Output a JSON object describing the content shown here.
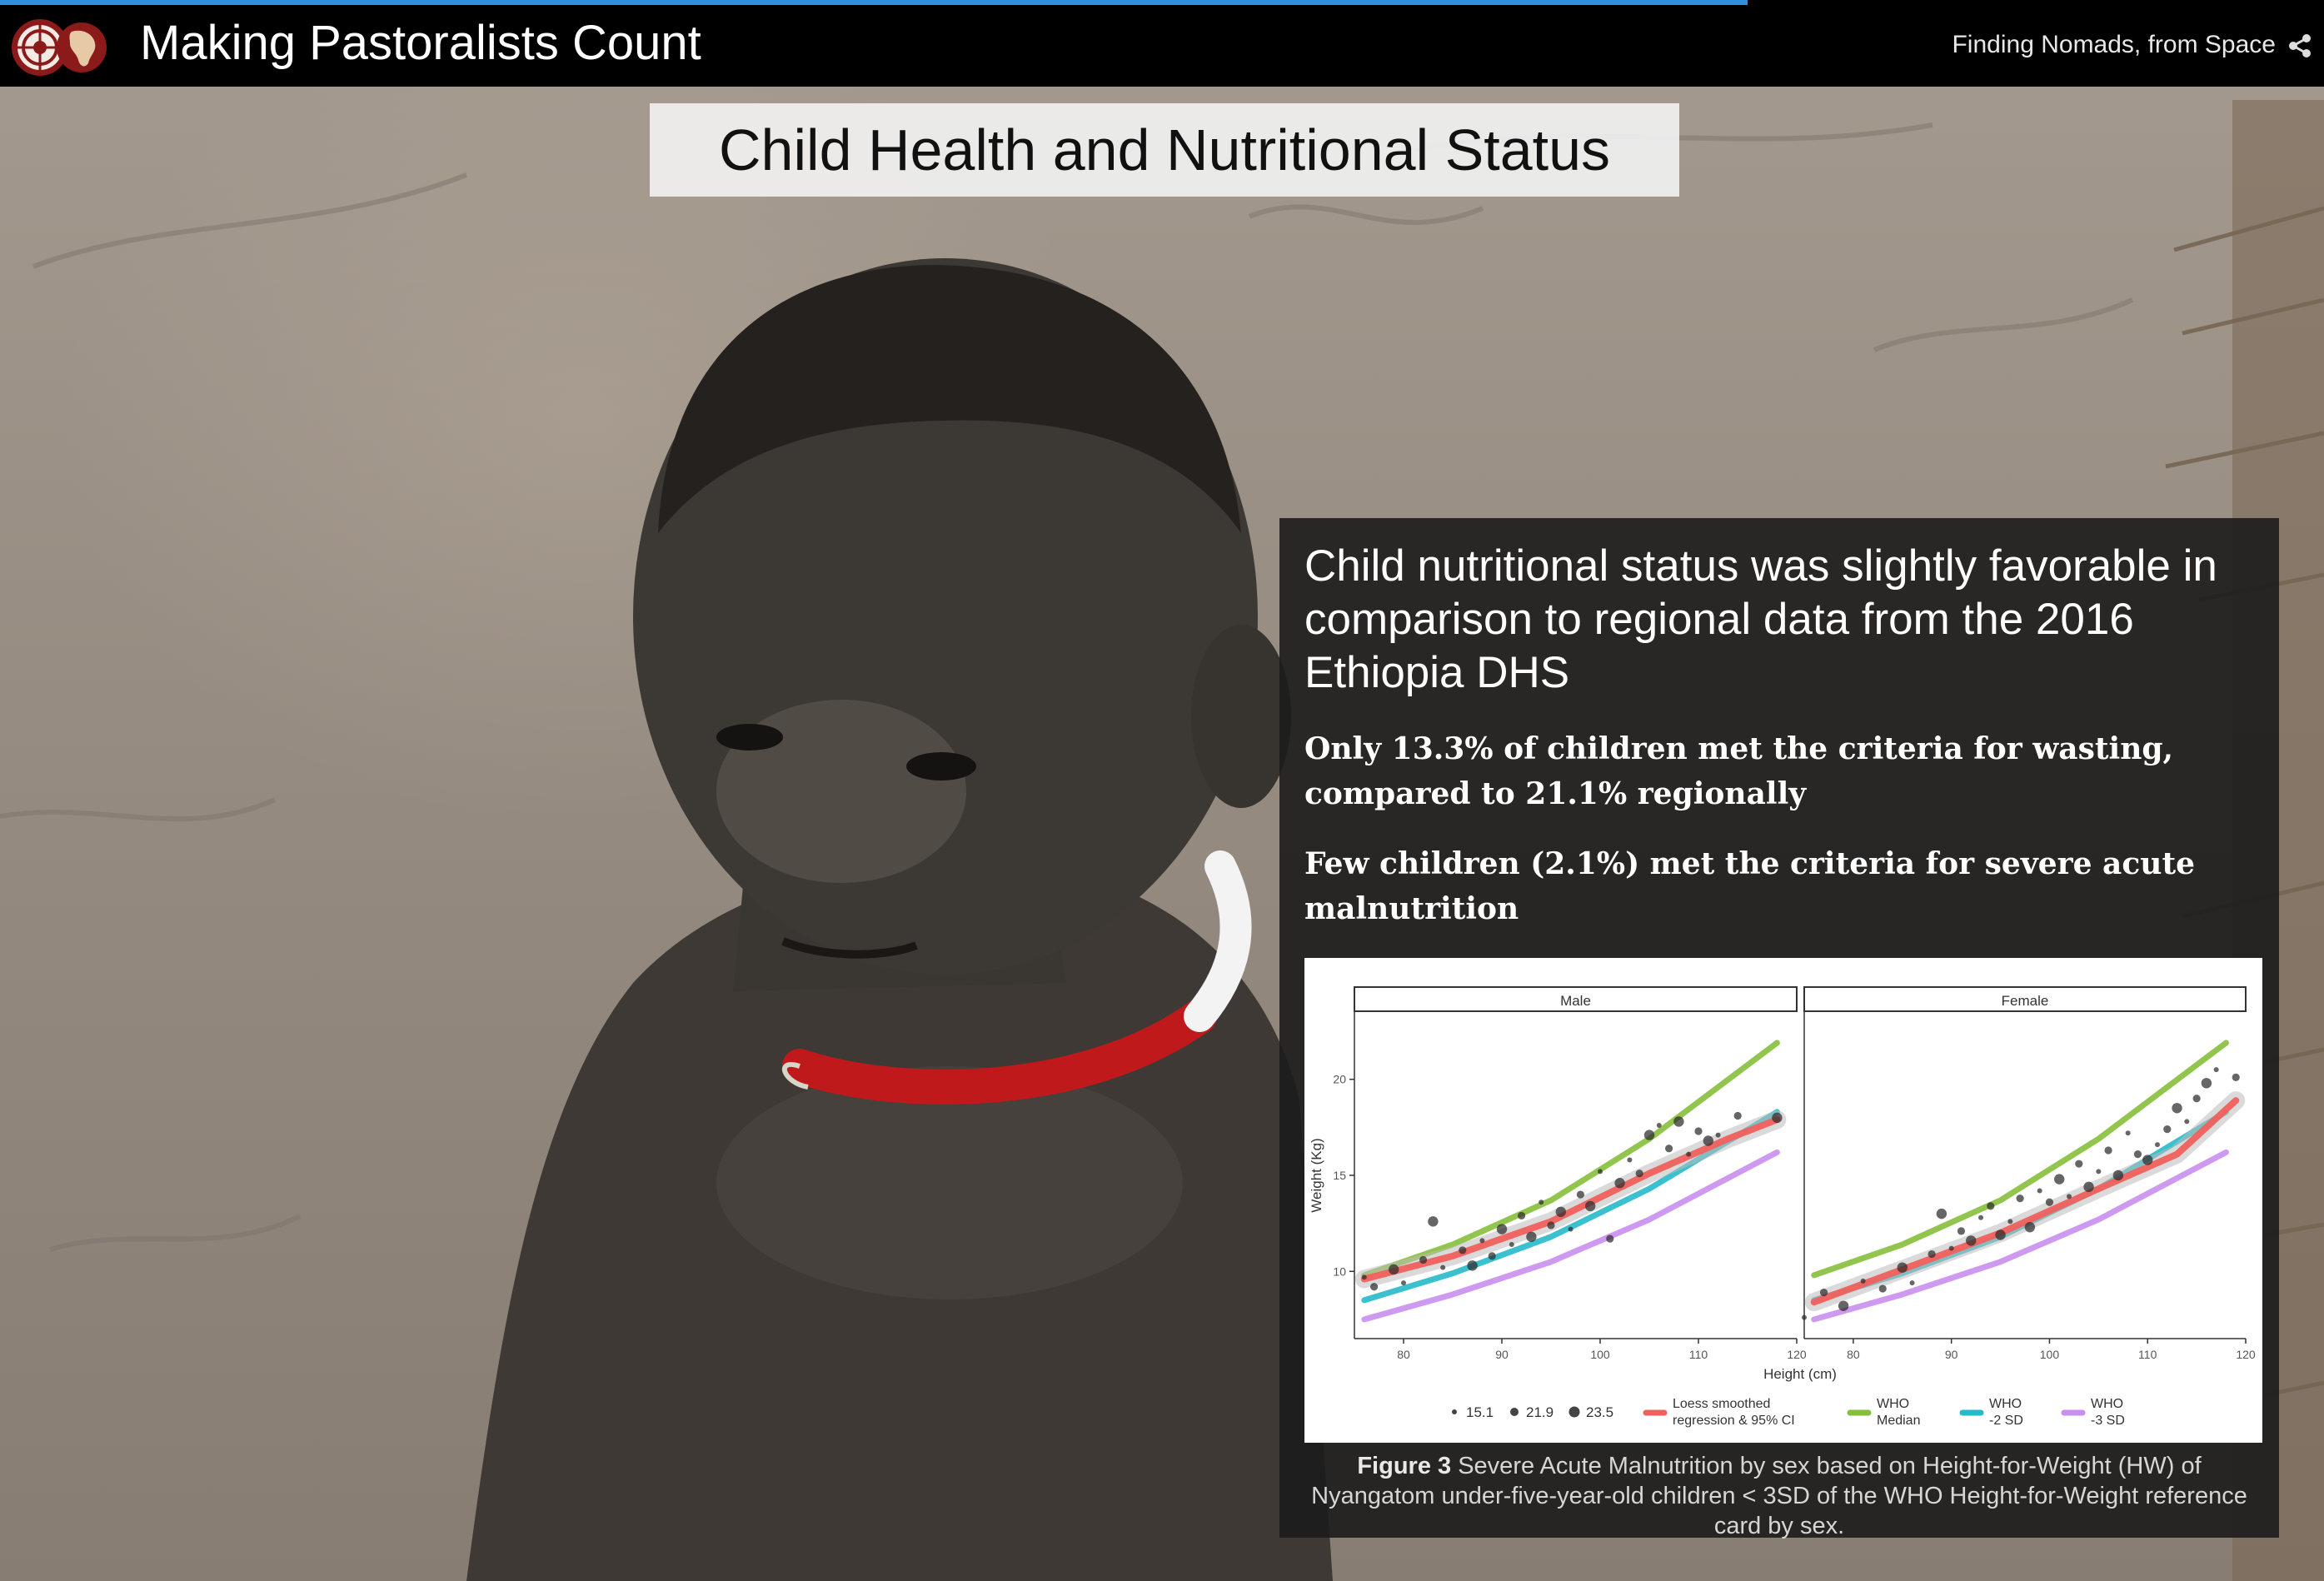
{
  "header": {
    "app_title": "Making Pastoralists Count",
    "story_link": "Finding Nomads, from Space",
    "colors": {
      "bar": "#000000",
      "progress": "#2f8fe0",
      "logo": "#8b1a1a"
    }
  },
  "section": {
    "title": "Child Health and Nutritional Status"
  },
  "panel": {
    "heading": "Child nutritional status was slightly favorable in comparison to regional data from the 2016 Ethiopia DHS",
    "bullets": [
      "Only 13.3% of children met the criteria for wasting, compared to 21.1% regionally",
      "Few children (2.1%) met the criteria for severe acute malnutrition"
    ],
    "caption_label": "Figure 3",
    "caption_text": " Severe Acute Malnutrition by sex based on Height-for-Weight (HW) of Nyangatom under-five-year-old children < 3SD of the WHO Height-for-Weight reference card by sex."
  },
  "chart_data": {
    "type": "scatter",
    "facets": [
      "Male",
      "Female"
    ],
    "xlabel": "Height (cm)",
    "ylabel": "Weight (Kg)",
    "xlim": [
      75,
      120
    ],
    "ylim": [
      6.5,
      23.5
    ],
    "x_ticks": [
      80,
      90,
      100,
      110,
      120
    ],
    "y_ticks": [
      10,
      15,
      20
    ],
    "size_legend": [
      "15.1",
      "21.9",
      "23.5"
    ],
    "legend": [
      {
        "label": "Loess smoothed regression & 95% CI",
        "color": "#f0605d"
      },
      {
        "label": "WHO Median",
        "color": "#86bf3a"
      },
      {
        "label": "WHO -2 SD",
        "color": "#25b9c9"
      },
      {
        "label": "WHO -3 SD",
        "color": "#c98ff0"
      }
    ],
    "who_median": {
      "x": [
        76,
        85,
        95,
        105,
        118
      ],
      "y": [
        9.8,
        11.4,
        13.7,
        16.9,
        21.9
      ]
    },
    "who_minus2sd": {
      "x": [
        76,
        85,
        95,
        105,
        118
      ],
      "y": [
        8.5,
        9.9,
        11.8,
        14.3,
        18.3
      ]
    },
    "who_minus3sd": {
      "x": [
        76,
        85,
        95,
        105,
        118
      ],
      "y": [
        7.5,
        8.8,
        10.5,
        12.7,
        16.2
      ]
    },
    "series": [
      {
        "name": "Male",
        "loess": {
          "x": [
            76,
            85,
            95,
            105,
            113,
            118
          ],
          "y": [
            9.6,
            10.8,
            12.6,
            15.1,
            16.9,
            17.9
          ]
        },
        "points": [
          [
            76,
            9.7
          ],
          [
            77,
            9.2
          ],
          [
            79,
            10.1
          ],
          [
            80,
            9.4
          ],
          [
            82,
            10.6
          ],
          [
            83,
            12.6
          ],
          [
            84,
            10.2
          ],
          [
            86,
            11.1
          ],
          [
            87,
            10.3
          ],
          [
            88,
            11.6
          ],
          [
            89,
            10.8
          ],
          [
            90,
            12.2
          ],
          [
            91,
            11.4
          ],
          [
            92,
            12.9
          ],
          [
            93,
            11.8
          ],
          [
            94,
            13.6
          ],
          [
            95,
            12.4
          ],
          [
            96,
            13.1
          ],
          [
            97,
            12.2
          ],
          [
            98,
            14.0
          ],
          [
            99,
            13.4
          ],
          [
            100,
            15.2
          ],
          [
            101,
            11.7
          ],
          [
            102,
            14.6
          ],
          [
            103,
            15.8
          ],
          [
            104,
            15.1
          ],
          [
            105,
            17.1
          ],
          [
            106,
            17.6
          ],
          [
            107,
            16.4
          ],
          [
            108,
            17.8
          ],
          [
            109,
            16.1
          ],
          [
            110,
            17.3
          ],
          [
            111,
            16.8
          ],
          [
            112,
            17.1
          ],
          [
            114,
            18.1
          ],
          [
            118,
            18.0
          ]
        ]
      },
      {
        "name": "Female",
        "loess": {
          "x": [
            76,
            85,
            95,
            105,
            113,
            119
          ],
          "y": [
            8.4,
            10.1,
            12.0,
            14.3,
            16.1,
            18.9
          ]
        },
        "points": [
          [
            75,
            7.6
          ],
          [
            77,
            8.9
          ],
          [
            79,
            8.2
          ],
          [
            81,
            9.5
          ],
          [
            83,
            9.1
          ],
          [
            85,
            10.2
          ],
          [
            86,
            9.4
          ],
          [
            88,
            10.9
          ],
          [
            89,
            13.0
          ],
          [
            90,
            11.2
          ],
          [
            91,
            12.1
          ],
          [
            92,
            11.6
          ],
          [
            93,
            12.8
          ],
          [
            94,
            13.4
          ],
          [
            95,
            11.9
          ],
          [
            96,
            12.6
          ],
          [
            97,
            13.8
          ],
          [
            98,
            12.3
          ],
          [
            99,
            14.2
          ],
          [
            100,
            13.6
          ],
          [
            101,
            14.8
          ],
          [
            102,
            13.9
          ],
          [
            103,
            15.6
          ],
          [
            104,
            14.4
          ],
          [
            105,
            15.2
          ],
          [
            106,
            16.3
          ],
          [
            107,
            15.0
          ],
          [
            108,
            17.2
          ],
          [
            109,
            16.1
          ],
          [
            110,
            15.8
          ],
          [
            111,
            16.6
          ],
          [
            112,
            17.4
          ],
          [
            113,
            18.5
          ],
          [
            114,
            17.8
          ],
          [
            115,
            19.0
          ],
          [
            116,
            19.8
          ],
          [
            117,
            20.5
          ],
          [
            119,
            20.1
          ]
        ]
      }
    ]
  }
}
